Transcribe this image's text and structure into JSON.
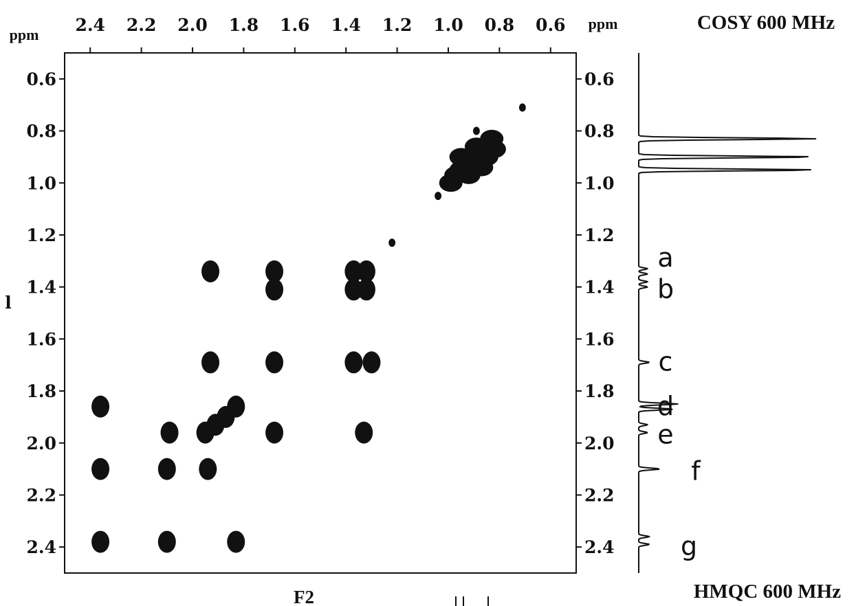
{
  "chart_data": {
    "type": "scatter",
    "title": "COSY 600 MHz",
    "subtitle": "HMQC 600 MHz",
    "xlabel": "F2",
    "x_unit_label": "ppm",
    "y_unit_label": "ppm",
    "stray_mark_left": "l",
    "x_axis": {
      "range": [
        2.5,
        0.5
      ],
      "reversed": true,
      "ticks": [
        2.4,
        2.2,
        2.0,
        1.8,
        1.6,
        1.4,
        1.2,
        1.0,
        0.8,
        0.6
      ],
      "tick_labels": [
        "2.4",
        "2.2",
        "2.0",
        "1.8",
        "1.6",
        "1.4",
        "1.2",
        "1.0",
        "0.8",
        "0.6"
      ]
    },
    "y_axis": {
      "range": [
        0.5,
        2.5
      ],
      "inverted": true,
      "ticks": [
        0.6,
        0.8,
        1.0,
        1.2,
        1.4,
        1.6,
        1.8,
        2.0,
        2.2,
        2.4
      ],
      "tick_labels": [
        "0.6",
        "0.8",
        "1.0",
        "1.2",
        "1.4",
        "1.6",
        "1.8",
        "2.0",
        "2.2",
        "2.4"
      ]
    },
    "grid": false,
    "diagonal_cluster": [
      {
        "x": 0.83,
        "y": 0.83
      },
      {
        "x": 0.86,
        "y": 0.86
      },
      {
        "x": 0.9,
        "y": 0.9
      },
      {
        "x": 0.93,
        "y": 0.93
      },
      {
        "x": 0.95,
        "y": 0.95
      },
      {
        "x": 0.97,
        "y": 0.97
      },
      {
        "x": 0.99,
        "y": 1.0
      },
      {
        "x": 0.85,
        "y": 0.9
      },
      {
        "x": 0.89,
        "y": 0.86
      },
      {
        "x": 0.92,
        "y": 0.97
      },
      {
        "x": 0.87,
        "y": 0.94
      },
      {
        "x": 0.95,
        "y": 0.9
      },
      {
        "x": 0.82,
        "y": 0.87
      }
    ],
    "diagonal_dots": [
      {
        "x": 0.71,
        "y": 0.71
      },
      {
        "x": 1.04,
        "y": 1.05
      },
      {
        "x": 1.22,
        "y": 1.23
      },
      {
        "x": 0.89,
        "y": 0.8
      }
    ],
    "cross_peaks": [
      {
        "x": 1.93,
        "y": 1.34
      },
      {
        "x": 1.68,
        "y": 1.34
      },
      {
        "x": 1.68,
        "y": 1.41
      },
      {
        "x": 1.37,
        "y": 1.34
      },
      {
        "x": 1.37,
        "y": 1.41
      },
      {
        "x": 1.32,
        "y": 1.34
      },
      {
        "x": 1.32,
        "y": 1.41
      },
      {
        "x": 1.93,
        "y": 1.69
      },
      {
        "x": 1.68,
        "y": 1.69
      },
      {
        "x": 1.37,
        "y": 1.69
      },
      {
        "x": 1.3,
        "y": 1.69
      },
      {
        "x": 2.36,
        "y": 1.86
      },
      {
        "x": 1.83,
        "y": 1.86
      },
      {
        "x": 1.87,
        "y": 1.9
      },
      {
        "x": 1.91,
        "y": 1.93
      },
      {
        "x": 2.09,
        "y": 1.96
      },
      {
        "x": 1.95,
        "y": 1.96
      },
      {
        "x": 1.68,
        "y": 1.96
      },
      {
        "x": 1.33,
        "y": 1.96
      },
      {
        "x": 2.36,
        "y": 2.1
      },
      {
        "x": 2.1,
        "y": 2.1
      },
      {
        "x": 1.94,
        "y": 2.1
      },
      {
        "x": 2.36,
        "y": 2.38
      },
      {
        "x": 2.1,
        "y": 2.38
      },
      {
        "x": 1.83,
        "y": 2.38
      }
    ],
    "projection_peaks": [
      {
        "ppm": 0.83,
        "height": 1.0
      },
      {
        "ppm": 0.9,
        "height": 1.0
      },
      {
        "ppm": 0.95,
        "height": 1.0
      },
      {
        "ppm": 1.33,
        "height": 0.05
      },
      {
        "ppm": 1.35,
        "height": 0.05
      },
      {
        "ppm": 1.38,
        "height": 0.05
      },
      {
        "ppm": 1.4,
        "height": 0.05
      },
      {
        "ppm": 1.69,
        "height": 0.06
      },
      {
        "ppm": 1.85,
        "height": 0.22
      },
      {
        "ppm": 1.87,
        "height": 0.2
      },
      {
        "ppm": 1.93,
        "height": 0.05
      },
      {
        "ppm": 1.96,
        "height": 0.05
      },
      {
        "ppm": 2.1,
        "height": 0.12
      },
      {
        "ppm": 2.36,
        "height": 0.06
      },
      {
        "ppm": 2.39,
        "height": 0.06
      }
    ],
    "annotations": [
      {
        "text": "a",
        "ppm": 1.29
      },
      {
        "text": "b",
        "ppm": 1.41
      },
      {
        "text": "c",
        "ppm": 1.69
      },
      {
        "text": "d",
        "ppm": 1.86
      },
      {
        "text": "e",
        "ppm": 1.97
      },
      {
        "text": "f",
        "ppm": 2.11
      },
      {
        "text": "g",
        "ppm": 2.4
      }
    ]
  }
}
